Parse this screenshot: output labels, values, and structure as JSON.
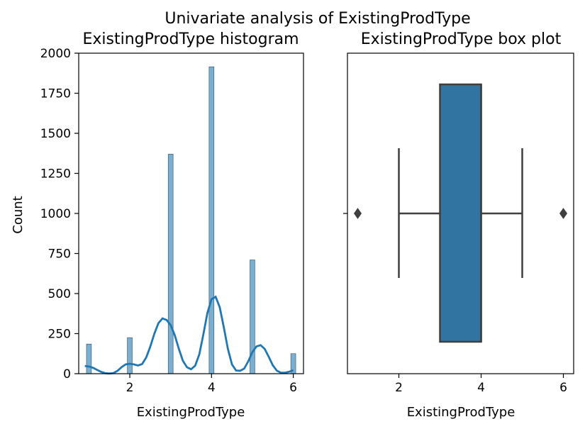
{
  "suptitle": "Univariate analysis of ExistingProdType",
  "colors": {
    "hist_fill": "#5b9ac4",
    "hist_edge": "#2c4f66",
    "kde": "#1f77b4",
    "box_fill": "#3274a1",
    "box_edge": "#3f3f3f",
    "axis": "#000000"
  },
  "chart_data": [
    {
      "type": "bar",
      "title": "ExistingProdType histogram",
      "xlabel": "ExistingProdType",
      "ylabel": "Count",
      "xlim": [
        0.75,
        6.25
      ],
      "ylim": [
        0,
        2000
      ],
      "x_ticks": [
        2,
        4,
        6
      ],
      "x_tick_labels": [
        "2",
        "4",
        "6"
      ],
      "y_ticks": [
        0,
        250,
        500,
        750,
        1000,
        1250,
        1500,
        1750,
        2000
      ],
      "y_tick_labels": [
        "0",
        "250",
        "500",
        "750",
        "1000",
        "1250",
        "1500",
        "1750",
        "2000"
      ],
      "categories": [
        "1",
        "2",
        "3",
        "4",
        "5",
        "6"
      ],
      "x": [
        1,
        2,
        3,
        4,
        5,
        6
      ],
      "values": [
        185,
        225,
        1370,
        1915,
        710,
        125
      ],
      "bar_width": 0.12,
      "kde": {
        "x": [
          0.9,
          1.0,
          1.1,
          1.2,
          1.3,
          1.4,
          1.5,
          1.6,
          1.7,
          1.8,
          1.9,
          2.0,
          2.1,
          2.2,
          2.3,
          2.4,
          2.5,
          2.6,
          2.7,
          2.8,
          2.9,
          3.0,
          3.1,
          3.2,
          3.3,
          3.4,
          3.5,
          3.6,
          3.7,
          3.8,
          3.9,
          4.0,
          4.1,
          4.2,
          4.3,
          4.4,
          4.5,
          4.6,
          4.7,
          4.8,
          4.9,
          5.0,
          5.1,
          5.2,
          5.3,
          5.4,
          5.5,
          5.6,
          5.7,
          5.8,
          5.9,
          6.0
        ],
        "y": [
          48,
          45,
          37,
          24,
          11,
          3,
          1,
          4,
          18,
          41,
          58,
          62,
          58,
          51,
          60,
          100,
          168,
          249,
          315,
          345,
          335,
          303,
          240,
          155,
          80,
          40,
          28,
          50,
          120,
          245,
          380,
          465,
          480,
          415,
          290,
          155,
          58,
          20,
          18,
          32,
          78,
          135,
          170,
          178,
          155,
          105,
          52,
          18,
          6,
          6,
          12,
          22
        ]
      }
    },
    {
      "type": "box",
      "title": "ExistingProdType box plot",
      "xlabel": "ExistingProdType",
      "xlim": [
        0.75,
        6.25
      ],
      "x_ticks": [
        2,
        4,
        6
      ],
      "x_tick_labels": [
        "2",
        "4",
        "6"
      ],
      "whisker_low": 2,
      "q1": 3,
      "median": 4,
      "q3": 4,
      "whisker_high": 5,
      "outliers": [
        1,
        6
      ]
    }
  ]
}
